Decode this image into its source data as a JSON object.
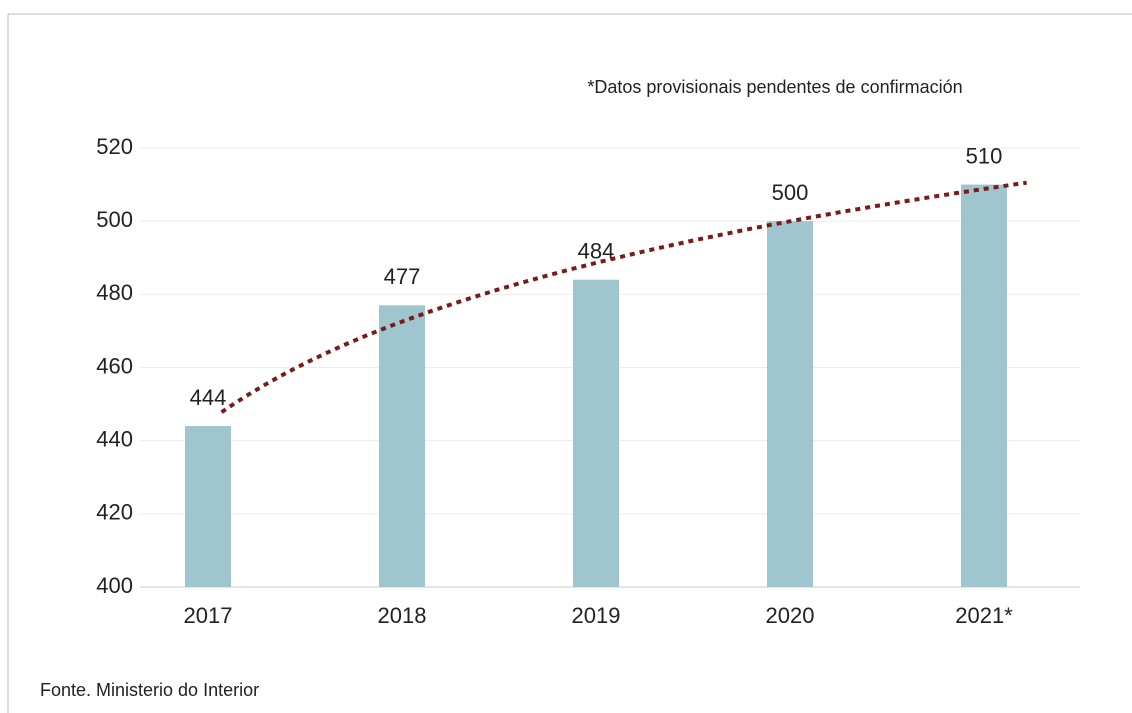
{
  "chart_data": {
    "type": "bar",
    "annotation": "*Datos provisionais pendentes de confirmación",
    "source": "Fonte. Ministerio do Interior",
    "categories": [
      "2017",
      "2018",
      "2019",
      "2020",
      "2021*"
    ],
    "values": [
      444,
      477,
      484,
      500,
      510
    ],
    "color": "#9fc5cf",
    "ylim": [
      400,
      520
    ],
    "yticks": [
      400,
      420,
      440,
      460,
      480,
      500,
      520
    ],
    "grid": true,
    "trendline": "logarithmic",
    "trendline_color": "#7b1a1a"
  }
}
